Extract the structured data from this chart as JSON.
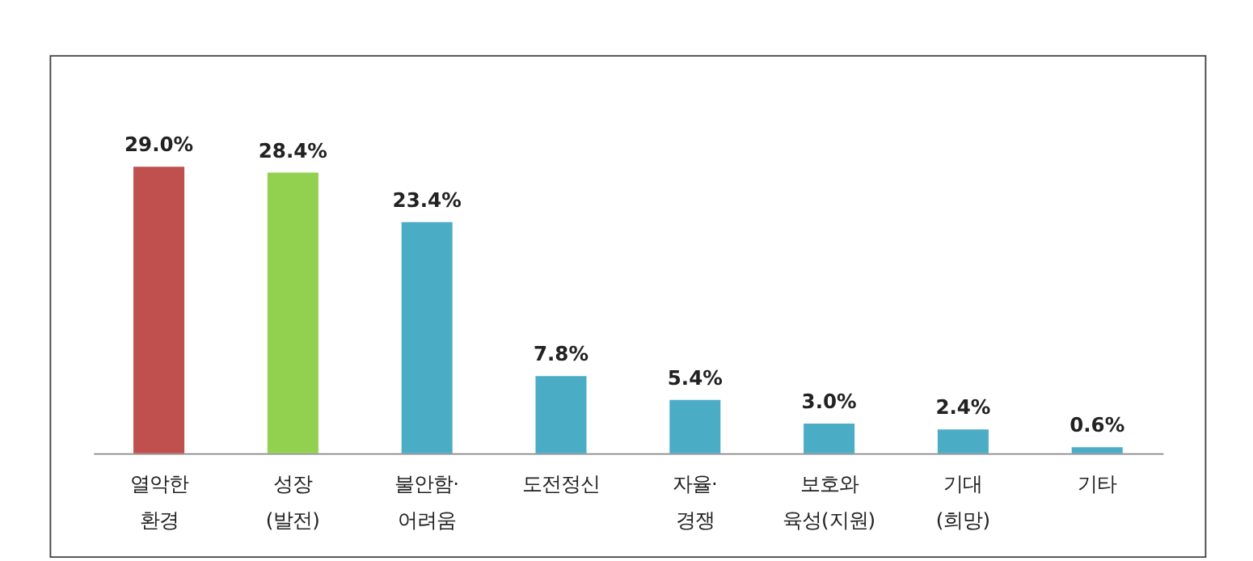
{
  "chart_data": {
    "type": "bar",
    "categories": [
      "열악한\n환경",
      "성장\n(발전)",
      "불안함·\n어려움",
      "도전정신",
      "자율·\n경쟁",
      "보호와\n육성(지원)",
      "기대\n(희망)",
      "기타"
    ],
    "values": [
      29.0,
      28.4,
      23.4,
      7.8,
      5.4,
      3.0,
      2.4,
      0.6
    ],
    "colors": [
      "#c0504d",
      "#92d050",
      "#4bacc6",
      "#4bacc6",
      "#4bacc6",
      "#4bacc6",
      "#4bacc6",
      "#4bacc6"
    ],
    "value_labels": [
      "29.0%",
      "28.4%",
      "23.4%",
      "7.8%",
      "5.4%",
      "3.0%",
      "2.4%",
      "0.6%"
    ],
    "grid": false
  }
}
